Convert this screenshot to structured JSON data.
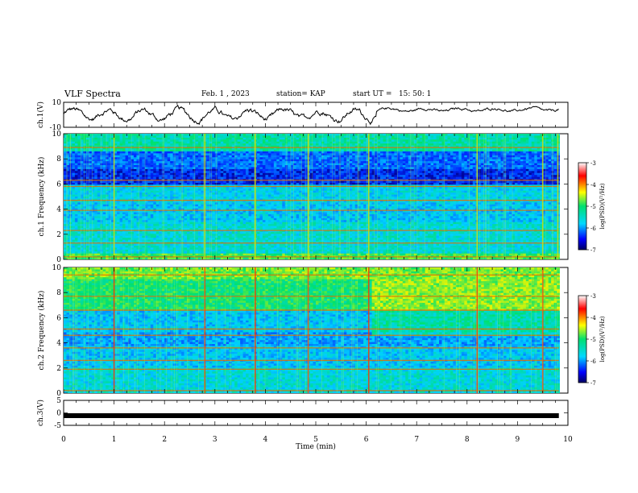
{
  "header": {
    "title": "VLF Spectra",
    "date": "Feb. 1 , 2023",
    "station": "station= KAP",
    "start_ut": "start UT =   15: 50: 1"
  },
  "chart_data": [
    {
      "type": "line",
      "name": "ch1-waveform",
      "ylabel": "ch.1(V)",
      "xlim": [
        0,
        10
      ],
      "ylim": [
        -10,
        10
      ],
      "yticks": [
        "10",
        "-10"
      ],
      "data_end_min": 9.82,
      "description_level": "noisy trace around 0 V, amplitude ~ +/-5 V, slightly higher and smoother after ~6.2 min"
    },
    {
      "type": "heatmap",
      "name": "ch1-spectrogram",
      "ylabel": "ch.1 Frequency (kHz)",
      "xlim": [
        0,
        10
      ],
      "ylim": [
        0,
        10
      ],
      "yticks": [
        "0",
        "2",
        "4",
        "6",
        "8",
        "10"
      ],
      "colorbar": {
        "label": "log(PSD)(V²/Hz)",
        "range": [
          -7,
          -3
        ],
        "ticks": [
          "-3",
          "-4",
          "-5",
          "-6",
          "-7"
        ]
      },
      "bands_khz": [
        0.2,
        1.3,
        2.3,
        3.9,
        4.7,
        5.8,
        6.3,
        8.9
      ],
      "bursts_min": [
        1.0,
        2.8,
        3.8,
        4.85,
        6.05,
        8.2,
        9.5,
        9.8
      ]
    },
    {
      "type": "heatmap",
      "name": "ch2-spectrogram",
      "ylabel": "ch.2 Frequency (kHz)",
      "xlim": [
        0,
        10
      ],
      "ylim": [
        0,
        10
      ],
      "yticks": [
        "0",
        "2",
        "4",
        "6",
        "8",
        "10"
      ],
      "colorbar": {
        "label": "log(PSD)(V²/Hz)",
        "range": [
          -7,
          -3
        ],
        "ticks": [
          "-3",
          "-4",
          "-5",
          "-6",
          "-7"
        ]
      },
      "bands_khz": [
        0.2,
        1.9,
        2.6,
        3.6,
        4.6,
        5.1,
        6.6,
        7.7,
        9.4
      ],
      "bursts_min": [
        1.0,
        2.8,
        3.8,
        4.85,
        6.05,
        8.2,
        9.5
      ]
    },
    {
      "type": "line",
      "name": "ch3-waveform",
      "ylabel": "ch.3(V)",
      "xlabel": "Time  (min)",
      "xlim": [
        0,
        10
      ],
      "ylim": [
        -5,
        5
      ],
      "yticks": [
        "5",
        "0",
        "-5"
      ],
      "xticks": [
        "0",
        "1",
        "2",
        "3",
        "4",
        "5",
        "6",
        "7",
        "8",
        "9",
        "10"
      ],
      "constant_value_v": 0,
      "data_end_min": 9.82
    }
  ]
}
